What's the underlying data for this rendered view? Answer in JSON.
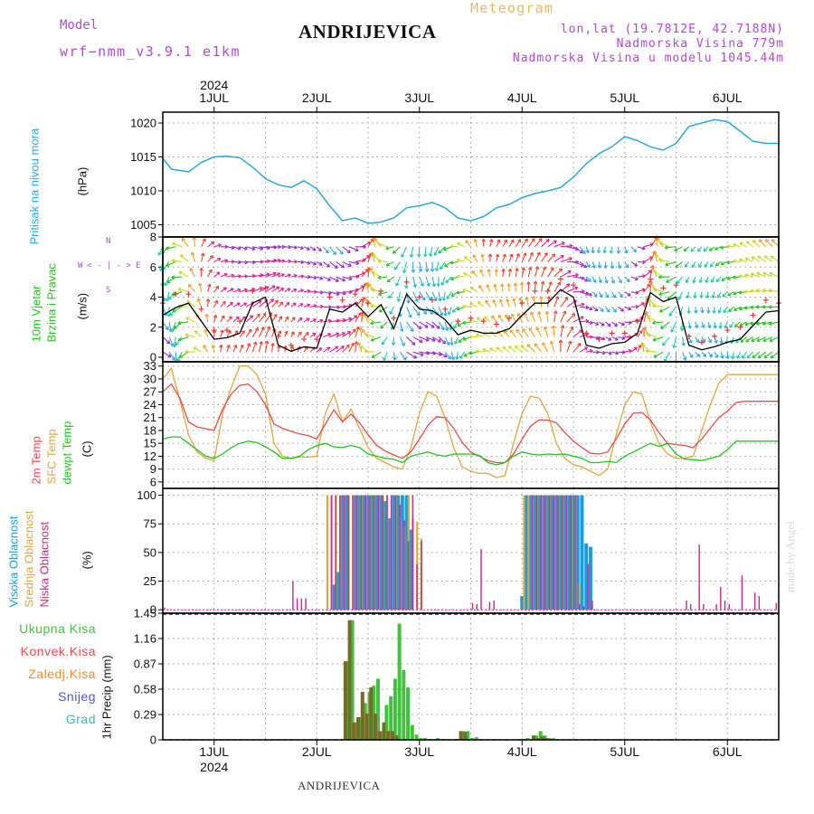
{
  "header": {
    "model_label": "Model",
    "model_name": "wrf−nmm_v3.9.1  e1km",
    "meteogram": "Meteogram",
    "location": "ANDRIJEVICA",
    "lonlat": "lon,lat (19.7812E, 42.7188N)",
    "elevation": "Nadmorska Visina 779m",
    "model_elevation": "Nadmorska Visina u modelu 1045.44m",
    "footer_location": "ANDRIJEVICA",
    "watermark": "made by Angel"
  },
  "colors": {
    "pressure": "#29a8e0",
    "wind_label": "#22c422",
    "wind_speed": "#000000",
    "wind_gust": "#ee3333",
    "t2m": "#e84a4a",
    "sfc": "#e0a63e",
    "dewpt": "#22c422",
    "high_cloud": "#1a9de0",
    "mid_cloud": "#d8a840",
    "low_cloud": "#c8288a",
    "total_precip": "#44c040",
    "convective": "#7a6a2a",
    "frozen": "#f08a30",
    "snow": "#5050e0",
    "graupel": "#30c0b0",
    "purple_text": "#b048d8",
    "grid": "#999999"
  },
  "axes": {
    "year": "2024",
    "days": [
      "1JUL",
      "2JUL",
      "3JUL",
      "4JUL",
      "5JUL",
      "6JUL"
    ],
    "x_range_hours": [
      -12,
      132
    ]
  },
  "panels": {
    "pressure": {
      "label": "Pritisak na nivou mora",
      "unit": "(hPa)",
      "ticks": [
        "1005",
        "1010",
        "1015",
        "1020"
      ]
    },
    "wind": {
      "label1": "10m Vjetar",
      "label2": "Brzina i Pravac",
      "unit": "(m/s)",
      "ticks": [
        "0",
        "2",
        "4",
        "6",
        "8"
      ],
      "compass_n": "N",
      "compass_s": "S",
      "compass_w": "W",
      "compass_e": "E",
      "compass_arrow_up": "< - - >",
      "compass_arrow_lr": "< - | - >"
    },
    "temp": {
      "label1": "2m Temp",
      "label2": "SFC Temp",
      "label3": "dewpt Temp",
      "unit": "(C)",
      "ticks": [
        "6",
        "9",
        "12",
        "15",
        "18",
        "21",
        "24",
        "27",
        "30",
        "33"
      ]
    },
    "cloud": {
      "label1": "Visoka Oblacnost",
      "label2": "Srednja Oblacnost",
      "label3": "Niska Oblacnost",
      "unit": "(%)",
      "ticks": [
        "0",
        "25",
        "50",
        "75",
        "100"
      ]
    },
    "precip": {
      "legend": [
        "Ukupna Kisa",
        "Konvek.Kisa",
        "Zaledj.Kisa",
        "Snijeg",
        "Grad"
      ],
      "unit": "1hr Precip (mm)",
      "ticks": [
        "0",
        "0.29",
        "0.58",
        "0.87",
        "1.16",
        "1.45"
      ]
    }
  },
  "chart_data": [
    {
      "type": "line",
      "title": "Pritisak na nivou mora",
      "ylabel": "(hPa)",
      "ylim": [
        1003.2,
        1021.6
      ],
      "x": [
        -12,
        -10,
        -8,
        -6,
        -3,
        0,
        3,
        6,
        9,
        12,
        15,
        18,
        21,
        24,
        27,
        30,
        33,
        36,
        39,
        42,
        45,
        48,
        51,
        54,
        57,
        60,
        63,
        66,
        69,
        72,
        75,
        78,
        81,
        84,
        87,
        90,
        93,
        96,
        99,
        102,
        105,
        108,
        111,
        114,
        117,
        120,
        123,
        126,
        129,
        132
      ],
      "values": [
        1014.8,
        1013.2,
        1013.0,
        1012.8,
        1014.2,
        1015.0,
        1015.1,
        1014.9,
        1013.5,
        1011.8,
        1010.9,
        1010.5,
        1011.5,
        1010.3,
        1007.8,
        1005.6,
        1006.0,
        1005.2,
        1005.4,
        1006.0,
        1007.5,
        1007.8,
        1008.3,
        1007.5,
        1006.0,
        1005.6,
        1006.2,
        1007.5,
        1008.0,
        1009.0,
        1009.6,
        1010.0,
        1010.5,
        1012.0,
        1014.0,
        1015.5,
        1016.5,
        1018.0,
        1017.4,
        1016.5,
        1016.0,
        1017.0,
        1019.5,
        1020.0,
        1020.5,
        1020.2,
        1018.8,
        1017.3,
        1017.0,
        1017.0
      ]
    },
    {
      "type": "line",
      "title": "10m Vjetar Brzina i Pravac",
      "ylabel": "(m/s)",
      "ylim": [
        -0.3,
        8
      ],
      "x": [
        -12,
        -9,
        -6,
        -3,
        0,
        3,
        6,
        9,
        12,
        15,
        18,
        21,
        24,
        27,
        30,
        33,
        36,
        39,
        42,
        45,
        48,
        51,
        54,
        57,
        60,
        63,
        66,
        69,
        72,
        75,
        78,
        81,
        84,
        87,
        90,
        93,
        96,
        99,
        102,
        105,
        108,
        111,
        114,
        117,
        120,
        123,
        126,
        129,
        132
      ],
      "series": [
        {
          "values": [
            2.8,
            3.3,
            3.6,
            2.4,
            1.2,
            1.3,
            1.6,
            3.6,
            4.0,
            0.8,
            0.4,
            0.7,
            0.6,
            3.2,
            3.0,
            3.6,
            2.7,
            3.5,
            1.9,
            4.2,
            3.2,
            3.1,
            2.5,
            1.5,
            1.8,
            1.6,
            1.6,
            1.9,
            2.8,
            3.6,
            3.6,
            4.5,
            4.0,
            0.8,
            0.6,
            0.9,
            1.0,
            1.6,
            4.3,
            3.7,
            4.0,
            0.8,
            0.5,
            0.7,
            1.0,
            1.2,
            2.1,
            3.0,
            3.1
          ]
        },
        {
          "values": [
            3.6,
            4.2,
            4.2,
            3.2,
            1.8,
            1.8,
            2.4,
            4.4,
            4.6,
            1.4,
            0.8,
            1.2,
            1.2,
            4.0,
            3.8,
            4.2,
            3.6,
            4.4,
            2.6,
            5.0,
            4.0,
            3.8,
            3.2,
            2.4,
            2.6,
            2.4,
            2.2,
            2.6,
            3.6,
            4.4,
            4.4,
            5.2,
            4.8,
            1.6,
            1.2,
            1.6,
            1.6,
            2.4,
            5.2,
            4.6,
            4.8,
            1.4,
            1.0,
            1.4,
            1.8,
            2.0,
            2.8,
            3.8,
            3.6
          ]
        }
      ]
    },
    {
      "type": "line",
      "title": "2m Temp / SFC Temp / dewpt Temp",
      "ylabel": "(C)",
      "ylim": [
        4.5,
        34
      ],
      "x": [
        -12,
        -10,
        -8,
        -6,
        -4,
        -2,
        0,
        2,
        4,
        6,
        8,
        10,
        12,
        14,
        16,
        18,
        20,
        22,
        24,
        26,
        28,
        30,
        32,
        34,
        36,
        38,
        40,
        42,
        44,
        46,
        48,
        50,
        52,
        54,
        56,
        58,
        60,
        62,
        64,
        66,
        68,
        70,
        72,
        74,
        76,
        78,
        80,
        82,
        84,
        86,
        88,
        90,
        92,
        94,
        96,
        98,
        100,
        102,
        104,
        106,
        108,
        110,
        112,
        114,
        116,
        118,
        120,
        122,
        124,
        126,
        128,
        130,
        132
      ],
      "series": [
        {
          "name": "2m Temp",
          "values": [
            27,
            28.8,
            25.5,
            20,
            18.8,
            18.4,
            18,
            23,
            26.5,
            28.5,
            28.8,
            27,
            24,
            19.5,
            18.5,
            17.8,
            17.2,
            16.8,
            16,
            19.5,
            22.8,
            20,
            21.8,
            19.8,
            17,
            14.5,
            13.2,
            12.3,
            11.5,
            13,
            16,
            19.2,
            21.2,
            21,
            18.5,
            15.2,
            13,
            12,
            11,
            10.5,
            10.5,
            12.5,
            16,
            19,
            20.5,
            20.4,
            19.8,
            17.5,
            15.5,
            14,
            12.7,
            12.5,
            13,
            16,
            19.5,
            22,
            22.2,
            20.5,
            17.5,
            15,
            14.7,
            14.5,
            14,
            16,
            18.5,
            21,
            22.5,
            24.5,
            24.8,
            24.8,
            24.8,
            24.8,
            24.8
          ]
        },
        {
          "name": "SFC Temp",
          "values": [
            30,
            32.5,
            25,
            17,
            13,
            11.5,
            11,
            22,
            28,
            33,
            33,
            31,
            26.5,
            15,
            12,
            11.5,
            11.8,
            11.8,
            12,
            22,
            26.5,
            20,
            23,
            18.5,
            14,
            11.5,
            10.5,
            9.5,
            9,
            14,
            22,
            27,
            26,
            21,
            14,
            9.5,
            8.5,
            8,
            8,
            7,
            7.5,
            15,
            22,
            26,
            25.5,
            22,
            15,
            11.5,
            10,
            9.5,
            8.5,
            7.5,
            9,
            17,
            24,
            27,
            26.5,
            20,
            15,
            12.5,
            11.5,
            11.5,
            12,
            18,
            24,
            29,
            31,
            31,
            31,
            31,
            31,
            31,
            31
          ]
        },
        {
          "name": "dewpt Temp",
          "values": [
            16,
            16.5,
            16.5,
            15,
            13.5,
            12,
            11.5,
            12.5,
            14,
            15,
            15.5,
            15.2,
            14.2,
            13,
            11.5,
            11.5,
            12,
            13.5,
            14.5,
            15,
            14.2,
            14,
            14.5,
            14,
            12.5,
            12,
            11.5,
            11.3,
            10.5,
            12,
            12.5,
            13,
            12.3,
            12,
            12.5,
            12.5,
            12.5,
            12.2,
            10.5,
            10,
            10.5,
            12,
            13,
            12.5,
            12.3,
            12.5,
            12.4,
            12.5,
            12,
            11.5,
            10.5,
            10.5,
            10.8,
            10.5,
            12,
            13,
            14,
            15,
            14.3,
            15,
            12.5,
            11.3,
            11.2,
            11,
            11.5,
            12,
            13.5,
            15.5,
            15.5,
            15.5,
            15.5,
            15.5,
            15.5
          ]
        }
      ]
    },
    {
      "type": "bar",
      "title": "Visoka / Srednja / Niska Oblacnost",
      "ylabel": "(%)",
      "ylim": [
        0,
        100
      ],
      "series": [
        {
          "name": "Visoka Oblacnost",
          "x": [
            28,
            29,
            30,
            31,
            33,
            34,
            35,
            36,
            37,
            38,
            39,
            40,
            41,
            42,
            43,
            44,
            45,
            46,
            72,
            73,
            74,
            75,
            76,
            77,
            78,
            79,
            80,
            81,
            82,
            83,
            84,
            85,
            86,
            87,
            88
          ],
          "values": [
            22,
            33,
            100,
            100,
            100,
            100,
            100,
            100,
            100,
            100,
            100,
            95,
            80,
            100,
            100,
            100,
            100,
            70,
            12,
            100,
            100,
            100,
            100,
            100,
            100,
            100,
            100,
            100,
            100,
            100,
            100,
            100,
            100,
            58,
            55
          ]
        },
        {
          "name": "Srednja Oblacnost",
          "x": [
            27,
            28,
            29,
            30,
            31,
            32,
            33,
            34,
            35,
            36,
            37,
            38,
            39,
            40,
            41,
            42,
            43,
            44,
            45,
            46,
            47,
            48,
            49,
            73,
            74,
            75,
            76,
            77,
            78,
            79,
            80,
            81,
            82,
            83,
            84,
            85,
            86
          ],
          "values": [
            100,
            100,
            100,
            100,
            100,
            100,
            100,
            100,
            100,
            100,
            100,
            100,
            100,
            100,
            100,
            100,
            100,
            80,
            72,
            100,
            80,
            77,
            62,
            100,
            100,
            100,
            100,
            100,
            100,
            100,
            100,
            100,
            100,
            100,
            100,
            100,
            23
          ]
        },
        {
          "name": "Niska Oblacnost",
          "x": [
            -12,
            18,
            19,
            20,
            21,
            27,
            28,
            29,
            30,
            31,
            32,
            33,
            34,
            35,
            36,
            37,
            38,
            39,
            40,
            41,
            42,
            43,
            44,
            45,
            46,
            47,
            48,
            60,
            61,
            62,
            64,
            65,
            74,
            75,
            76,
            77,
            78,
            79,
            80,
            81,
            82,
            83,
            84,
            85,
            86,
            87,
            88,
            110,
            111,
            113,
            114,
            117,
            118,
            119,
            120,
            123,
            126,
            127,
            131
          ],
          "values": [
            2,
            25,
            10,
            10,
            10,
            100,
            100,
            100,
            100,
            100,
            100,
            100,
            100,
            100,
            100,
            100,
            100,
            100,
            100,
            100,
            100,
            92,
            78,
            60,
            100,
            40,
            60,
            6,
            5,
            53,
            7,
            8,
            100,
            100,
            100,
            100,
            100,
            100,
            100,
            100,
            100,
            100,
            100,
            5,
            3,
            40,
            8,
            8,
            5,
            57,
            5,
            5,
            20,
            8,
            5,
            30,
            15,
            12,
            6
          ]
        }
      ]
    },
    {
      "type": "bar",
      "title": "1hr Precip",
      "ylabel": "1hr Precip (mm)",
      "ylim": [
        0,
        1.45
      ],
      "series": [
        {
          "name": "Ukupna Kisa",
          "x": [
            31,
            32,
            33,
            34,
            35,
            36,
            37,
            38,
            39,
            40,
            41,
            42,
            43,
            44,
            45,
            46,
            47,
            48,
            49,
            50,
            51,
            52,
            53,
            54,
            57,
            58,
            59,
            60,
            61,
            72,
            73,
            75,
            76,
            77,
            78,
            79
          ],
          "values": [
            0.9,
            1.37,
            0.2,
            0.26,
            0.42,
            0.55,
            0.62,
            0.7,
            0.1,
            0.4,
            0.5,
            0.7,
            1.33,
            0.8,
            0.6,
            0.17,
            0.06,
            0.02,
            0.02,
            0.01,
            0.01,
            0.02,
            0.01,
            0.01,
            0.01,
            0.1,
            0.1,
            0.02,
            0.03,
            0.01,
            0.02,
            0.05,
            0.1,
            0.05,
            0.02,
            0.02
          ]
        },
        {
          "name": "Konvek.Kisa",
          "x": [
            31,
            32,
            33,
            34,
            35,
            36,
            37,
            38,
            39,
            40,
            41,
            42,
            43,
            57,
            58,
            59,
            75,
            76,
            77,
            78
          ],
          "values": [
            0.9,
            1.37,
            0.2,
            0.26,
            0.55,
            0.3,
            0.6,
            0.3,
            0.1,
            0.2,
            0.1,
            0.1,
            0.05,
            0.01,
            0.1,
            0.09,
            0.05,
            0.02,
            0.04,
            0.02
          ]
        },
        {
          "name": "Zaledj.Kisa",
          "x": [],
          "values": []
        },
        {
          "name": "Snijeg",
          "x": [],
          "values": []
        },
        {
          "name": "Grad",
          "x": [],
          "values": []
        }
      ]
    }
  ]
}
